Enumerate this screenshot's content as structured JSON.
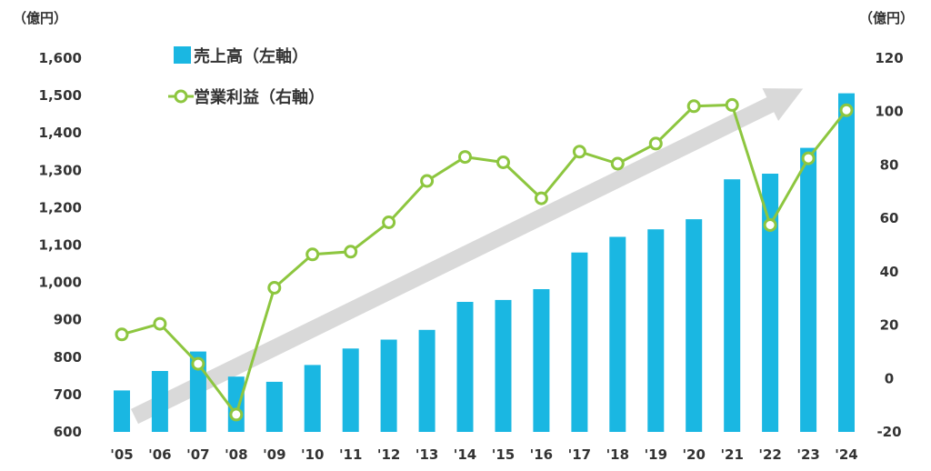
{
  "colors": {
    "bar": "#1AB7E2",
    "line": "#8DC63F",
    "marker_fill": "#ffffff",
    "trend_arrow": "#D9D9D9",
    "text": "#333333"
  },
  "chart_data": {
    "type": "bar+line",
    "categories": [
      "'05",
      "'06",
      "'07",
      "'08",
      "'09",
      "'10",
      "'11",
      "'12",
      "'13",
      "'14",
      "'15",
      "'16",
      "'17",
      "'18",
      "'19",
      "'20",
      "'21",
      "'22",
      "'23",
      "'24"
    ],
    "series": [
      {
        "name": "売上高（左軸）",
        "type": "bar",
        "axis": "left",
        "values": [
          711,
          763,
          815,
          748,
          734,
          779,
          823,
          847,
          873,
          948,
          953,
          982,
          1080,
          1122,
          1142,
          1169,
          1276,
          1291,
          1360,
          1506
        ]
      },
      {
        "name": "営業利益（右軸）",
        "type": "line",
        "axis": "right",
        "values": [
          16.5,
          20.5,
          5.5,
          -13.5,
          34,
          46.5,
          47.5,
          58.5,
          74,
          83,
          81,
          67.5,
          85,
          80.5,
          88,
          102,
          102.5,
          57.5,
          82.5,
          100.5
        ]
      }
    ],
    "y_left": {
      "unit": "（億円）",
      "ticks": [
        "600",
        "700",
        "800",
        "900",
        "1,000",
        "1,100",
        "1,200",
        "1,300",
        "1,400",
        "1,500",
        "1,600"
      ],
      "ylim": [
        600,
        1600
      ]
    },
    "y_right": {
      "unit": "（億円）",
      "ticks": [
        "-20",
        "0",
        "20",
        "40",
        "60",
        "80",
        "100",
        "120"
      ],
      "ylim": [
        -20,
        120
      ]
    },
    "trend_arrow": true,
    "grid": false,
    "legend_position": "top-left"
  }
}
